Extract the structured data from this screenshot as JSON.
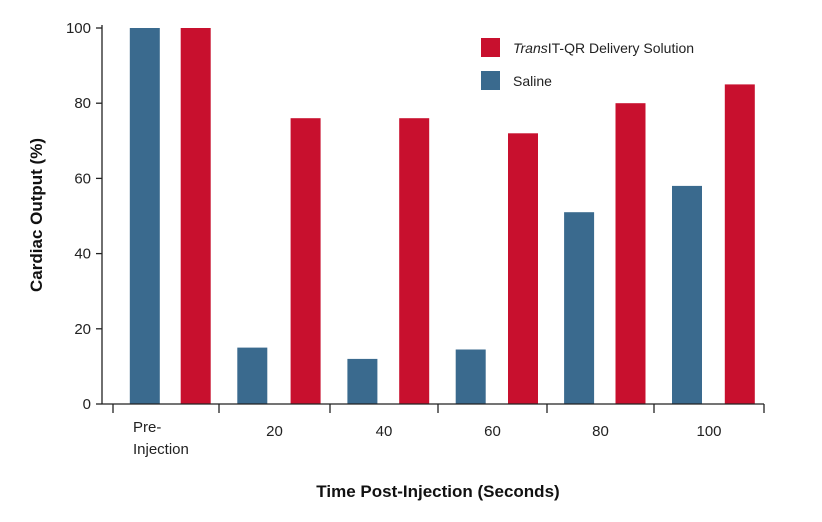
{
  "chart_data": {
    "type": "bar",
    "categories": [
      "Pre-Injection",
      "20",
      "40",
      "60",
      "80",
      "100"
    ],
    "series": [
      {
        "name": "Saline",
        "color": "#3a6a8e",
        "values": [
          100,
          15,
          12,
          14.5,
          51,
          58
        ]
      },
      {
        "name_italic": "Trans",
        "name_rest": "IT-QR Delivery Solution",
        "color": "#c8102e",
        "values": [
          100,
          76,
          76,
          72,
          80,
          85
        ]
      }
    ],
    "xlabel": "Time Post-Injection (Seconds)",
    "ylabel": "Cardiac Output (%)",
    "ylim": [
      0,
      100
    ],
    "yticks": [
      0,
      20,
      40,
      60,
      80,
      100
    ],
    "xtick_labels": [
      [
        "Pre-",
        "Injection"
      ],
      [
        "20"
      ],
      [
        "40"
      ],
      [
        "60"
      ],
      [
        "80"
      ],
      [
        "100"
      ]
    ],
    "legend_position": "top-right",
    "grid": false
  }
}
